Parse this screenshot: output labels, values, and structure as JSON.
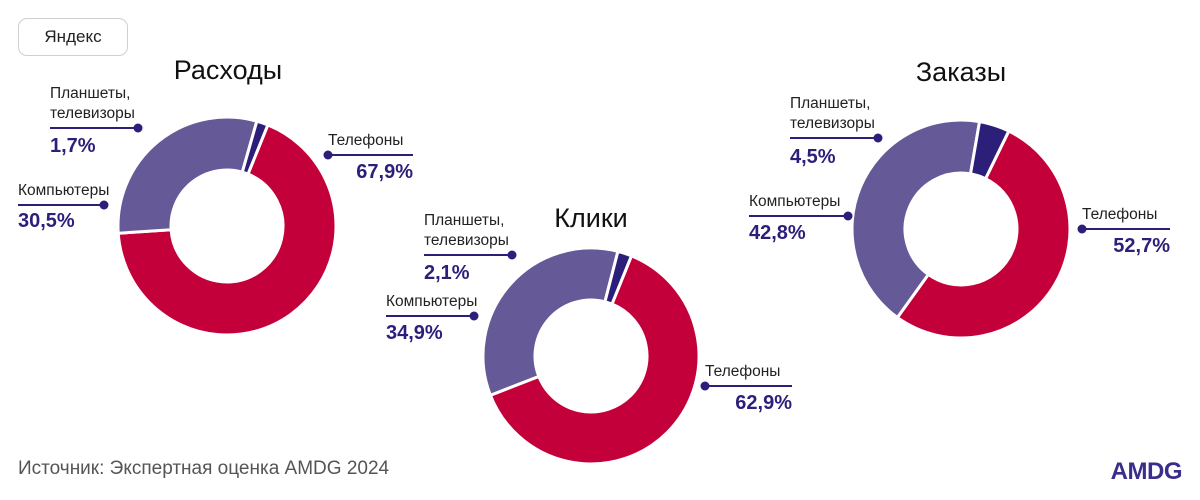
{
  "tag": "Яндекс",
  "source": "Источник: Экспертная оценка AMDG 2024",
  "logo": "AMDG",
  "colors": {
    "phones": "#c4003a",
    "computers": "#655998",
    "tablets": "#2c1f7a",
    "label": "#2c1f7a",
    "leader": "#2c1f7a"
  },
  "chart_data": [
    {
      "type": "pie",
      "title": "Расходы",
      "slices": [
        {
          "name": "Телефоны",
          "value": 67.9,
          "value_label": "67,9%"
        },
        {
          "name": "Компьютеры",
          "value": 30.5,
          "value_label": "30,5%"
        },
        {
          "name": "Планшеты, телевизоры",
          "value": 1.7,
          "value_label": "1,7%"
        }
      ]
    },
    {
      "type": "pie",
      "title": "Клики",
      "slices": [
        {
          "name": "Телефоны",
          "value": 62.9,
          "value_label": "62,9%"
        },
        {
          "name": "Компьютеры",
          "value": 34.9,
          "value_label": "34,9%"
        },
        {
          "name": "Планшеты, телевизоры",
          "value": 2.1,
          "value_label": "2,1%"
        }
      ]
    },
    {
      "type": "pie",
      "title": "Заказы",
      "slices": [
        {
          "name": "Телефоны",
          "value": 52.7,
          "value_label": "52,7%"
        },
        {
          "name": "Компьютеры",
          "value": 42.8,
          "value_label": "42,8%"
        },
        {
          "name": "Планшеты, телевизоры",
          "value": 4.5,
          "value_label": "4,5%"
        }
      ]
    }
  ]
}
